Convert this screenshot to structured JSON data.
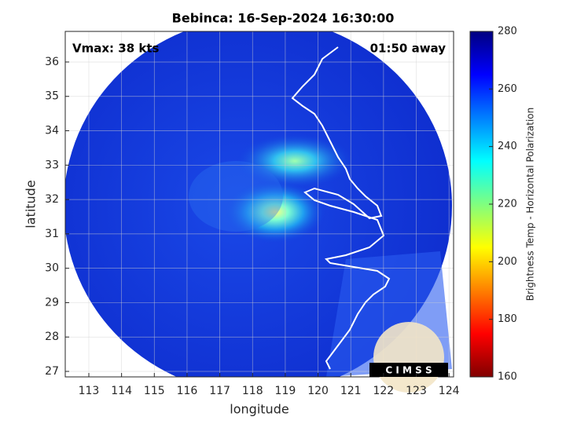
{
  "chart_data": {
    "type": "map",
    "title": "Bebinca: 16-Sep-2024 16:30:00",
    "xlabel": "longitude",
    "ylabel": "latitude",
    "xlim": [
      112.28,
      124.14
    ],
    "ylim": [
      26.84,
      36.89
    ],
    "xticks": [
      113,
      114,
      115,
      116,
      117,
      118,
      119,
      120,
      121,
      122,
      123,
      124
    ],
    "yticks": [
      27,
      28,
      29,
      30,
      31,
      32,
      33,
      34,
      35,
      36
    ],
    "grid": true,
    "annotations": [
      "Vmax: 38 kts",
      "01:50 away"
    ],
    "colorbar": {
      "label": "Brightness Temp - Horizontal Polarization",
      "lim": [
        160,
        280
      ],
      "ticks": [
        160,
        180,
        200,
        220,
        240,
        260,
        280
      ],
      "colormap": "jet"
    },
    "logo": "C I M S S"
  }
}
